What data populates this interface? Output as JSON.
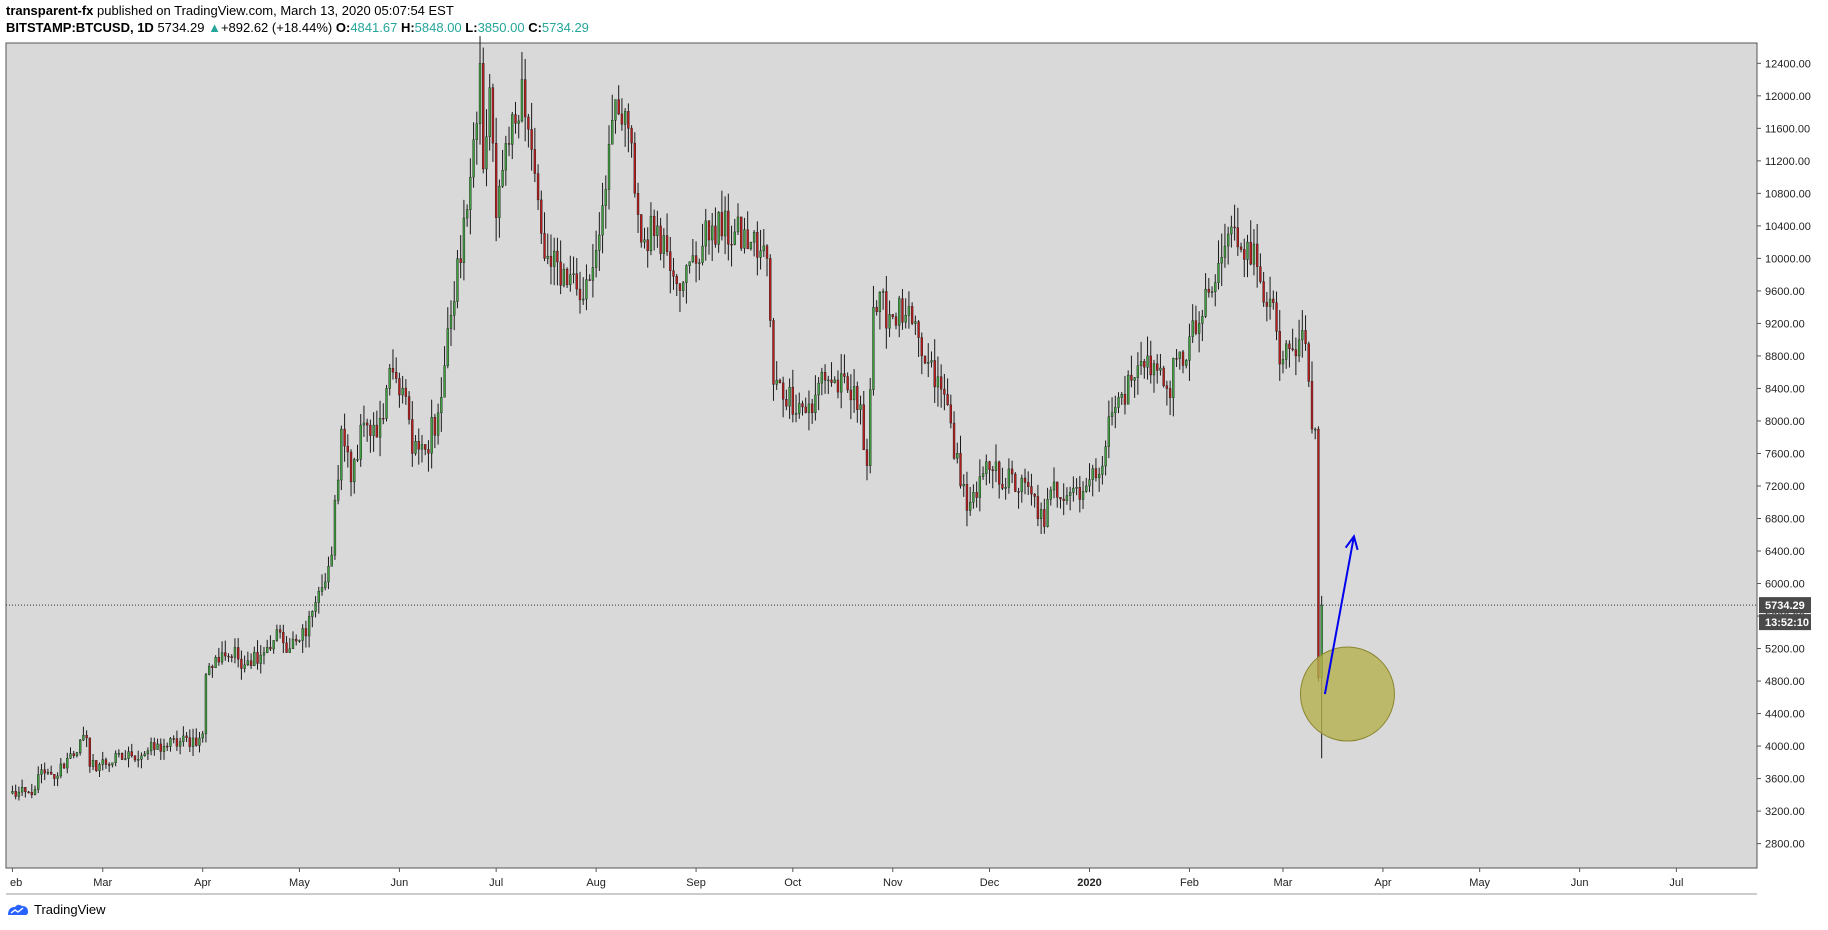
{
  "header": {
    "author": "transparent-fx",
    "published_text": " published on TradingView.com, March 13, 2020 05:07:54 EST",
    "symbol": "BITSTAMP:BTCUSD, 1D",
    "last_price": "5734.29",
    "change_arrow": "▲",
    "change": "+892.62 (+18.44%)",
    "open_label": "O:",
    "open_value": "4841.67",
    "high_label": "H:",
    "high_value": "5848.00",
    "low_label": "L:",
    "low_value": "3850.00",
    "close_label": "C:",
    "close_value": "5734.29"
  },
  "footer": {
    "brand": "TradingView"
  },
  "chart_data": {
    "type": "candlestick",
    "symbol": "BITSTAMP:BTCUSD",
    "interval": "1D",
    "x_ticks": [
      "eb",
      "Mar",
      "Apr",
      "May",
      "Jun",
      "Jul",
      "Aug",
      "Sep",
      "Oct",
      "Nov",
      "Dec",
      "2020",
      "Feb",
      "Mar",
      "Apr",
      "May",
      "Jun",
      "Jul"
    ],
    "y_ticks": [
      "12400.00",
      "12000.00",
      "11600.00",
      "11200.00",
      "10800.00",
      "10400.00",
      "10000.00",
      "9600.00",
      "9200.00",
      "8800.00",
      "8400.00",
      "8000.00",
      "7600.00",
      "7200.00",
      "6800.00",
      "6400.00",
      "6000.00",
      "5600.00",
      "5200.00",
      "4800.00",
      "4400.00",
      "4000.00",
      "3600.00",
      "3200.00",
      "2800.00"
    ],
    "y_range": [
      2500,
      12650
    ],
    "x_range": [
      "2019-01-30",
      "2020-07-26"
    ],
    "current_price_label": "5734.29",
    "countdown_label": "13:52:10",
    "last_close": 5734.29,
    "up_color": "#3f9e3f",
    "down_color": "#b71c1c",
    "background_color": "#d9d9d9",
    "annotations": {
      "circle": {
        "date": "2020-03-21",
        "price": 4640,
        "color": "#b5b04a"
      },
      "arrow": {
        "from": {
          "date": "2020-03-14",
          "price": 4640
        },
        "to": {
          "date": "2020-03-23",
          "price": 6580
        },
        "color": "#0000ee"
      }
    },
    "anchors": [
      [
        "2019-01-31",
        3420
      ],
      [
        "2019-02-07",
        3400
      ],
      [
        "2019-02-09",
        3650
      ],
      [
        "2019-02-14",
        3600
      ],
      [
        "2019-02-18",
        3850
      ],
      [
        "2019-02-24",
        4100
      ],
      [
        "2019-02-25",
        3750
      ],
      [
        "2019-03-10",
        3880
      ],
      [
        "2019-03-20",
        4000
      ],
      [
        "2019-03-31",
        4100
      ],
      [
        "2019-04-01",
        4150
      ],
      [
        "2019-04-02",
        4880
      ],
      [
        "2019-04-07",
        5150
      ],
      [
        "2019-04-15",
        5050
      ],
      [
        "2019-04-23",
        5300
      ],
      [
        "2019-04-25",
        5400
      ],
      [
        "2019-04-27",
        5150
      ],
      [
        "2019-05-01",
        5300
      ],
      [
        "2019-05-08",
        5950
      ],
      [
        "2019-05-11",
        6350
      ],
      [
        "2019-05-14",
        7900
      ],
      [
        "2019-05-17",
        7250
      ],
      [
        "2019-05-20",
        7950
      ],
      [
        "2019-05-25",
        7800
      ],
      [
        "2019-05-30",
        8600
      ],
      [
        "2019-06-03",
        8300
      ],
      [
        "2019-06-05",
        7600
      ],
      [
        "2019-06-09",
        7650
      ],
      [
        "2019-06-13",
        8100
      ],
      [
        "2019-06-17",
        9300
      ],
      [
        "2019-06-22",
        10600
      ],
      [
        "2019-06-26",
        12400
      ],
      [
        "2019-06-27",
        11100
      ],
      [
        "2019-06-29",
        12100
      ],
      [
        "2019-07-01",
        10500
      ],
      [
        "2019-07-09",
        12200
      ],
      [
        "2019-07-16",
        10000
      ],
      [
        "2019-07-18",
        9900
      ],
      [
        "2019-07-24",
        9800
      ],
      [
        "2019-07-28",
        9500
      ],
      [
        "2019-08-01",
        10100
      ],
      [
        "2019-08-06",
        11700
      ],
      [
        "2019-08-11",
        11600
      ],
      [
        "2019-08-15",
        10200
      ],
      [
        "2019-08-20",
        10400
      ],
      [
        "2019-08-28",
        9700
      ],
      [
        "2019-09-06",
        10400
      ],
      [
        "2019-09-18",
        10200
      ],
      [
        "2019-09-23",
        10000
      ],
      [
        "2019-09-25",
        8450
      ],
      [
        "2019-10-07",
        8100
      ],
      [
        "2019-10-10",
        8600
      ],
      [
        "2019-10-22",
        8200
      ],
      [
        "2019-10-24",
        7450
      ],
      [
        "2019-10-26",
        9400
      ],
      [
        "2019-11-05",
        9300
      ],
      [
        "2019-11-10",
        8800
      ],
      [
        "2019-11-18",
        8200
      ],
      [
        "2019-11-22",
        7200
      ],
      [
        "2019-11-25",
        7000
      ],
      [
        "2019-12-01",
        7400
      ],
      [
        "2019-12-14",
        7100
      ],
      [
        "2019-12-18",
        6700
      ],
      [
        "2019-12-20",
        7150
      ],
      [
        "2019-12-31",
        7200
      ],
      [
        "2020-01-03",
        7300
      ],
      [
        "2020-01-08",
        8100
      ],
      [
        "2020-01-14",
        8500
      ],
      [
        "2020-01-19",
        8800
      ],
      [
        "2020-01-25",
        8400
      ],
      [
        "2020-02-04",
        9200
      ],
      [
        "2020-02-09",
        9700
      ],
      [
        "2020-02-13",
        10300
      ],
      [
        "2020-02-19",
        10200
      ],
      [
        "2020-02-26",
        9500
      ],
      [
        "2020-02-29",
        8700
      ],
      [
        "2020-03-05",
        8800
      ],
      [
        "2020-03-08",
        8950
      ],
      [
        "2020-03-10",
        7900
      ],
      [
        "2020-03-11",
        7900
      ],
      [
        "2020-03-12",
        4841.67
      ],
      [
        "2020-03-13",
        5734.29
      ]
    ]
  }
}
